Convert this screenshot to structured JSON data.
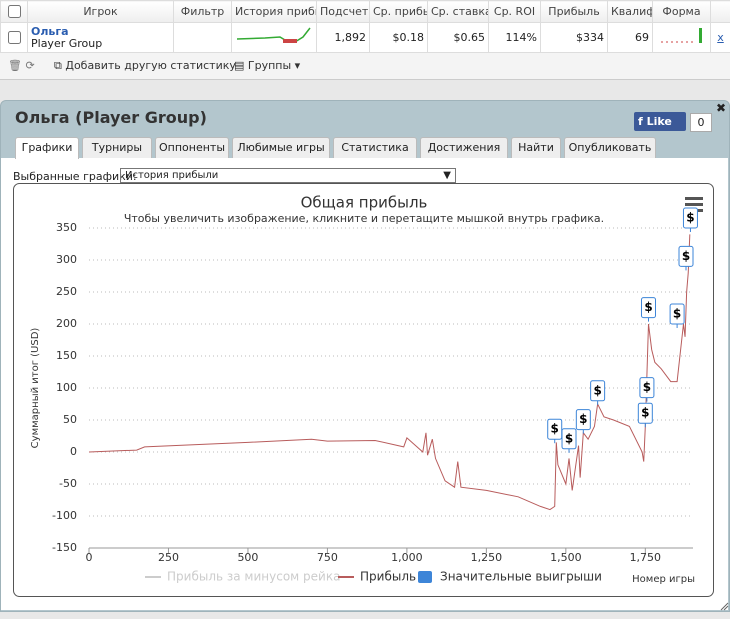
{
  "table": {
    "headers": [
      "Игрок",
      "Фильтр",
      "История прибы",
      "Подсчет",
      "Ср. прибы",
      "Ср. ставка",
      "Ср. ROI",
      "Прибыль",
      "Квалиф",
      "Форма"
    ],
    "row": {
      "player": "Ольга",
      "group": "Player Group",
      "cells": [
        "1,892",
        "$0.18",
        "$0.65",
        "114%",
        "$334",
        "69"
      ],
      "remove": "x"
    }
  },
  "toolbar": {
    "add": "Добавить другую статистику",
    "groups": "Группы"
  },
  "panel": {
    "title": "Ольга (Player Group)",
    "like": "Like",
    "like_count": "0",
    "tabs": [
      "Графики",
      "Турниры",
      "Оппоненты",
      "Любимые игры",
      "Статистика",
      "Достижения",
      "Найти",
      "Опубликовать"
    ],
    "select_label": "Выбранные графики:",
    "select_value": "История прибыли"
  },
  "chart_data": {
    "type": "line",
    "title": "Общая прибыль",
    "subtitle": "Чтобы увеличить изображение, кликните и перетащите мышкой внутрь графика.",
    "y_label": "Суммарный итог (USD)",
    "x_label": "Номер игры",
    "xlim": [
      0,
      1900
    ],
    "ylim": [
      -150,
      350
    ],
    "xticks": [
      0,
      250,
      500,
      750,
      {
        "value": 1000,
        "label": "1,000"
      },
      {
        "value": 1250,
        "label": "1,250"
      },
      {
        "value": 1500,
        "label": "1,500"
      },
      {
        "value": 1750,
        "label": "1,750"
      }
    ],
    "yticks": [
      -150,
      -100,
      -50,
      0,
      50,
      100,
      150,
      200,
      250,
      300,
      350
    ],
    "grid": true,
    "series": [
      {
        "name": "Прибыль за минусом рейка",
        "color": "#cccccc",
        "visible": false,
        "x": [],
        "values": []
      },
      {
        "name": "Прибыль",
        "color": "#b85c5c",
        "x": [
          0,
          150,
          175,
          500,
          700,
          750,
          900,
          990,
          1000,
          1050,
          1060,
          1065,
          1080,
          1090,
          1120,
          1150,
          1160,
          1170,
          1250,
          1350,
          1420,
          1450,
          1465,
          1470,
          1475,
          1500,
          1510,
          1520,
          1540,
          1545,
          1555,
          1570,
          1590,
          1600,
          1620,
          1650,
          1700,
          1740,
          1745,
          1750,
          1760,
          1770,
          1780,
          1800,
          1830,
          1850,
          1870,
          1875,
          1880,
          1885,
          1890
        ],
        "values": [
          0,
          3,
          8,
          15,
          20,
          17,
          18,
          8,
          22,
          0,
          30,
          -5,
          20,
          -10,
          -45,
          -55,
          -15,
          -55,
          -60,
          -70,
          -85,
          -90,
          -85,
          15,
          -20,
          -50,
          -10,
          -60,
          10,
          -40,
          30,
          20,
          40,
          75,
          55,
          50,
          40,
          0,
          -15,
          40,
          200,
          160,
          140,
          130,
          110,
          110,
          200,
          180,
          250,
          280,
          340
        ]
      },
      {
        "name": "Значительные выигрыши",
        "color": "#3d85d8",
        "type": "scatter",
        "marker_label": "$",
        "x": [
          1465,
          1510,
          1555,
          1600,
          1750,
          1755,
          1760,
          1850,
          1878,
          1892
        ],
        "values": [
          20,
          5,
          35,
          80,
          45,
          85,
          210,
          200,
          290,
          350
        ]
      }
    ]
  }
}
